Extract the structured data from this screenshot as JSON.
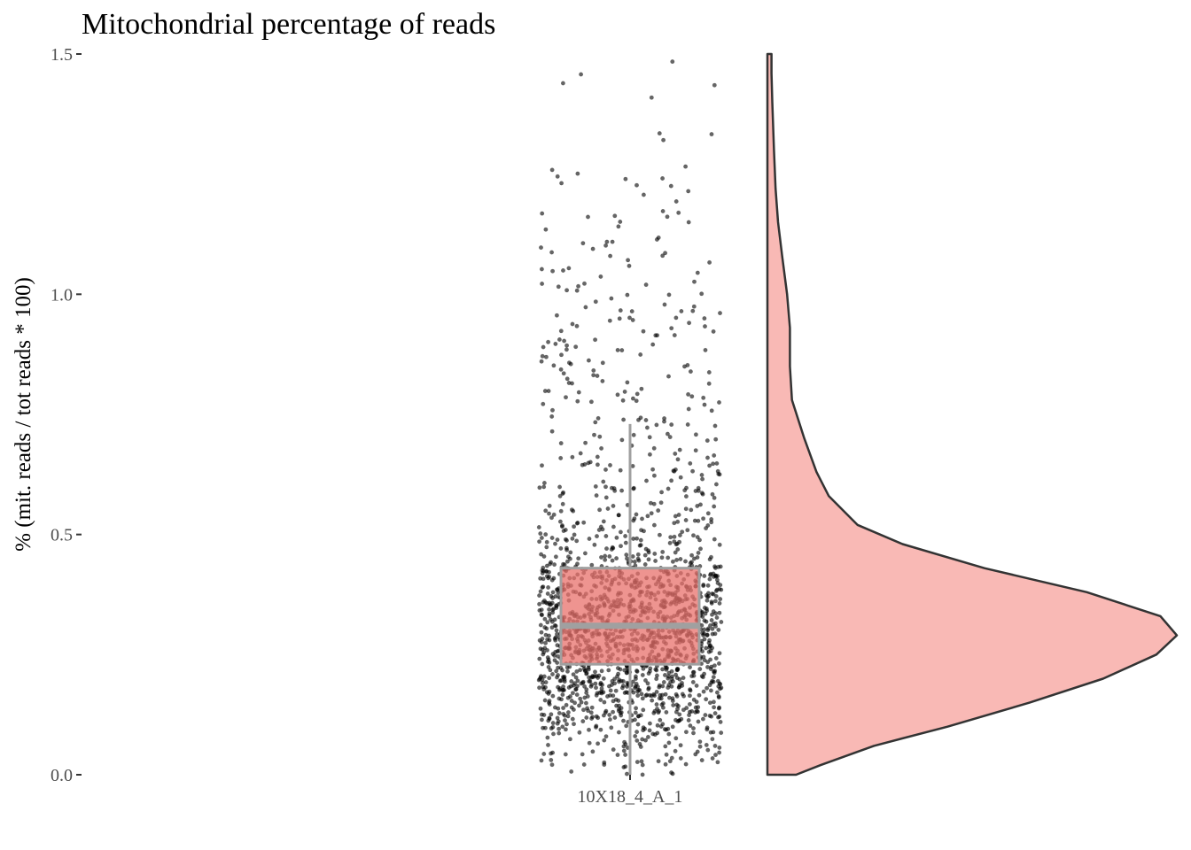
{
  "chart_data": {
    "type": "raincloud",
    "title": "Mitochondrial percentage of reads",
    "xlabel": "",
    "ylabel": "% (mit. reads / tot reads * 100)",
    "ylim": [
      0,
      1.5
    ],
    "yticks": [
      0.0,
      0.5,
      1.0,
      1.5
    ],
    "ytick_labels": [
      "0.0",
      "0.5",
      "1.0",
      "1.5"
    ],
    "categories": [
      "10X18_4_A_1"
    ],
    "grid": false,
    "legend": "none",
    "boxplot": {
      "category": "10X18_4_A_1",
      "q1": 0.23,
      "median": 0.31,
      "q3": 0.43,
      "whisker_low": 0.0,
      "whisker_high": 0.73
    },
    "violin": {
      "category": "10X18_4_A_1",
      "y": [
        0.0,
        0.02,
        0.06,
        0.1,
        0.15,
        0.2,
        0.25,
        0.29,
        0.33,
        0.38,
        0.43,
        0.48,
        0.52,
        0.58,
        0.63,
        0.7,
        0.78,
        0.85,
        0.93,
        1.0,
        1.08,
        1.15,
        1.22,
        1.3,
        1.4,
        1.46,
        1.5
      ],
      "density": [
        0.07,
        0.13,
        0.26,
        0.44,
        0.64,
        0.82,
        0.95,
        1.0,
        0.96,
        0.78,
        0.53,
        0.33,
        0.22,
        0.15,
        0.12,
        0.09,
        0.06,
        0.055,
        0.055,
        0.048,
        0.036,
        0.026,
        0.02,
        0.016,
        0.012,
        0.01,
        0.01
      ]
    },
    "points": {
      "category": "10X18_4_A_1",
      "approx_count": 1800,
      "range": [
        0.0,
        1.5
      ],
      "note_fill": "black semi-transparent"
    },
    "colors": {
      "box_fill": "#e8706b",
      "box_outline": "#a0a0a0",
      "violin_fill": "#f9b9b5",
      "violin_outline": "#333333",
      "points": "#000000"
    }
  }
}
